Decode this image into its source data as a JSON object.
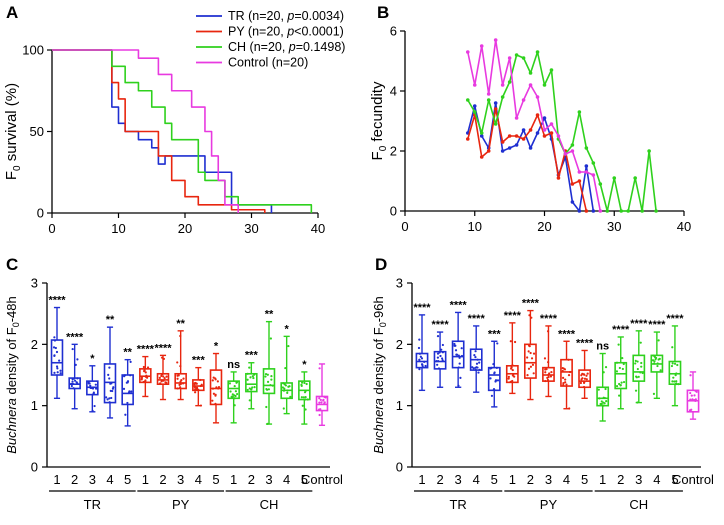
{
  "colors": {
    "TR": "#1f2fd1",
    "PY": "#e8260f",
    "CH": "#2fd11d",
    "Control": "#e83ae0",
    "axis": "#000000"
  },
  "chart_data": [
    {
      "panel": "A",
      "type": "line",
      "ylabel": "F0 survival (%)",
      "ylabel_parts": {
        "pre": "F",
        "sub": "0",
        "post": " survival (%)"
      },
      "xlabel": "",
      "xlim": [
        0,
        40
      ],
      "ylim": [
        0,
        100
      ],
      "x_ticks": [
        0,
        10,
        20,
        30,
        40
      ],
      "y_ticks": [
        0,
        50,
        100
      ],
      "legend_position": "top-right",
      "legend": [
        {
          "key": "TR",
          "pre": "TR (n=20, ",
          "p": "p",
          "post": "=0.0034)"
        },
        {
          "key": "PY",
          "pre": "PY (n=20, ",
          "p": "p",
          "post": "<0.0001)"
        },
        {
          "key": "CH",
          "pre": "CH (n=20, ",
          "p": "p",
          "post": "=0.1498)"
        },
        {
          "key": "Control",
          "pre": "Control (n=20)",
          "p": "",
          "post": ""
        }
      ],
      "series": [
        {
          "name": "TR",
          "x": [
            0,
            9,
            9,
            10,
            10,
            11,
            11,
            13,
            13,
            15,
            15,
            16,
            16,
            17,
            17,
            23,
            23,
            27,
            27,
            33,
            33
          ],
          "y": [
            100,
            100,
            65,
            65,
            55,
            55,
            50,
            50,
            45,
            45,
            40,
            40,
            30,
            30,
            35,
            35,
            25,
            25,
            5,
            5,
            0
          ]
        },
        {
          "name": "PY",
          "x": [
            0,
            9,
            9,
            10,
            10,
            11,
            11,
            16,
            16,
            18,
            18,
            20,
            20,
            22,
            22,
            27,
            27,
            32,
            32
          ],
          "y": [
            100,
            100,
            80,
            80,
            70,
            70,
            50,
            50,
            35,
            35,
            20,
            20,
            10,
            10,
            5,
            5,
            2,
            2,
            0
          ]
        },
        {
          "name": "CH",
          "x": [
            0,
            9,
            9,
            11,
            11,
            13,
            13,
            15,
            15,
            17,
            17,
            18,
            18,
            22,
            22,
            23,
            23,
            26,
            26,
            28,
            28,
            39,
            39
          ],
          "y": [
            100,
            100,
            90,
            90,
            80,
            80,
            75,
            75,
            65,
            65,
            55,
            55,
            45,
            45,
            25,
            25,
            20,
            20,
            10,
            10,
            5,
            5,
            0
          ]
        },
        {
          "name": "Control",
          "x": [
            0,
            13,
            13,
            16,
            16,
            18,
            18,
            21,
            21,
            23,
            23,
            24,
            24,
            25,
            25,
            26,
            26,
            28,
            28
          ],
          "y": [
            100,
            100,
            95,
            95,
            85,
            85,
            75,
            75,
            65,
            65,
            50,
            50,
            35,
            35,
            20,
            20,
            5,
            5,
            0
          ]
        }
      ]
    },
    {
      "panel": "B",
      "type": "line",
      "ylabel": "F0 fecundity",
      "ylabel_parts": {
        "pre": "F",
        "sub": "0",
        "post": " fecundity"
      },
      "xlabel": "",
      "xlim": [
        0,
        40
      ],
      "ylim": [
        0,
        6
      ],
      "x_ticks": [
        0,
        10,
        20,
        30,
        40
      ],
      "y_ticks": [
        0,
        2,
        4,
        6
      ],
      "series": [
        {
          "name": "TR",
          "x": [
            9,
            10,
            11,
            12,
            13,
            14,
            15,
            16,
            17,
            18,
            19,
            20,
            21,
            22,
            23,
            24,
            25,
            26,
            27
          ],
          "y": [
            2.6,
            3.5,
            2.5,
            2.1,
            3.6,
            2.0,
            2.1,
            2.2,
            2.7,
            2.1,
            2.6,
            3.1,
            2.4,
            1.2,
            1.8,
            0.3,
            0.0,
            1.5,
            0.0
          ]
        },
        {
          "name": "PY",
          "x": [
            9,
            10,
            11,
            12,
            13,
            14,
            15,
            16,
            17,
            18,
            19,
            20,
            21,
            22,
            23,
            24,
            25,
            26
          ],
          "y": [
            2.4,
            3.2,
            1.8,
            2.0,
            3.4,
            2.3,
            2.5,
            2.5,
            2.4,
            2.7,
            3.2,
            2.5,
            2.6,
            1.1,
            2.0,
            0.9,
            1.0,
            0.0
          ]
        },
        {
          "name": "CH",
          "x": [
            9,
            10,
            11,
            12,
            13,
            14,
            15,
            16,
            17,
            18,
            19,
            20,
            21,
            22,
            23,
            24,
            25,
            26,
            27,
            28,
            29,
            30,
            31,
            32,
            33,
            34,
            35,
            36
          ],
          "y": [
            3.7,
            3.3,
            2.6,
            3.7,
            2.9,
            3.8,
            4.3,
            5.2,
            5.1,
            4.6,
            5.3,
            4.2,
            4.7,
            2.4,
            1.9,
            2.2,
            3.3,
            2.1,
            1.6,
            0.9,
            0.0,
            1.1,
            0.0,
            0.0,
            1.1,
            0.0,
            2.0,
            0.0
          ]
        },
        {
          "name": "Control",
          "x": [
            9,
            10,
            11,
            12,
            13,
            14,
            15,
            16,
            17,
            18,
            19,
            20,
            21,
            22,
            23,
            24,
            25,
            26,
            27,
            28
          ],
          "y": [
            5.3,
            4.2,
            5.5,
            3.9,
            5.7,
            4.2,
            5.1,
            3.1,
            3.7,
            4.2,
            3.8,
            2.7,
            2.9,
            2.5,
            1.9,
            2.0,
            1.3,
            1.3,
            1.2,
            0.0
          ]
        }
      ]
    },
    {
      "panel": "C",
      "type": "box",
      "ylabel_parts": {
        "italic": "Buchnera",
        "mid": " density of F",
        "sub": "0",
        "post": "-48h"
      },
      "ylim": [
        0,
        3
      ],
      "y_ticks": [
        0,
        1,
        2,
        3
      ],
      "categories": [
        "1",
        "2",
        "3",
        "4",
        "5",
        "1",
        "2",
        "3",
        "4",
        "5",
        "1",
        "2",
        "3",
        "4",
        "5",
        "Control"
      ],
      "category_series": [
        "TR",
        "TR",
        "TR",
        "TR",
        "TR",
        "PY",
        "PY",
        "PY",
        "PY",
        "PY",
        "CH",
        "CH",
        "CH",
        "CH",
        "CH",
        "Control"
      ],
      "groups": [
        "TR",
        "PY",
        "CH"
      ],
      "boxes": [
        {
          "min": 1.12,
          "q1": 1.5,
          "median": 1.7,
          "q3": 2.07,
          "max": 2.6,
          "sig": "****"
        },
        {
          "min": 0.95,
          "q1": 1.28,
          "median": 1.35,
          "q3": 1.45,
          "max": 2.0,
          "sig": "****"
        },
        {
          "min": 0.9,
          "q1": 1.18,
          "median": 1.3,
          "q3": 1.4,
          "max": 1.65,
          "sig": "*"
        },
        {
          "min": 0.8,
          "q1": 1.05,
          "median": 1.38,
          "q3": 1.68,
          "max": 2.28,
          "sig": "**"
        },
        {
          "min": 0.67,
          "q1": 1.02,
          "median": 1.2,
          "q3": 1.5,
          "max": 1.75,
          "sig": "**"
        },
        {
          "min": 1.15,
          "q1": 1.38,
          "median": 1.48,
          "q3": 1.6,
          "max": 1.8,
          "sig": "****"
        },
        {
          "min": 1.1,
          "q1": 1.35,
          "median": 1.42,
          "q3": 1.52,
          "max": 1.82,
          "sig": "****"
        },
        {
          "min": 1.1,
          "q1": 1.28,
          "median": 1.37,
          "q3": 1.52,
          "max": 2.22,
          "sig": "**"
        },
        {
          "min": 1.0,
          "q1": 1.25,
          "median": 1.32,
          "q3": 1.42,
          "max": 1.62,
          "sig": "***"
        },
        {
          "min": 0.72,
          "q1": 1.02,
          "median": 1.28,
          "q3": 1.58,
          "max": 1.85,
          "sig": "*"
        },
        {
          "min": 0.72,
          "q1": 1.12,
          "median": 1.28,
          "q3": 1.4,
          "max": 1.55,
          "sig": "ns"
        },
        {
          "min": 0.95,
          "q1": 1.23,
          "median": 1.35,
          "q3": 1.52,
          "max": 1.7,
          "sig": "***"
        },
        {
          "min": 0.7,
          "q1": 1.2,
          "median": 1.33,
          "q3": 1.6,
          "max": 2.37,
          "sig": "**"
        },
        {
          "min": 0.87,
          "q1": 1.12,
          "median": 1.25,
          "q3": 1.37,
          "max": 2.13,
          "sig": "*"
        },
        {
          "min": 0.7,
          "q1": 1.1,
          "median": 1.25,
          "q3": 1.4,
          "max": 1.55,
          "sig": "*"
        },
        {
          "min": 0.68,
          "q1": 0.92,
          "median": 1.02,
          "q3": 1.15,
          "max": 1.68,
          "sig": ""
        }
      ]
    },
    {
      "panel": "D",
      "type": "box",
      "ylabel_parts": {
        "italic": "Buchnera",
        "mid": " density of F",
        "sub": "0",
        "post": "-96h"
      },
      "ylim": [
        0,
        3
      ],
      "y_ticks": [
        0,
        1,
        2,
        3
      ],
      "categories": [
        "1",
        "2",
        "3",
        "4",
        "5",
        "1",
        "2",
        "3",
        "4",
        "5",
        "1",
        "2",
        "3",
        "4",
        "5",
        "Control"
      ],
      "category_series": [
        "TR",
        "TR",
        "TR",
        "TR",
        "TR",
        "PY",
        "PY",
        "PY",
        "PY",
        "PY",
        "CH",
        "CH",
        "CH",
        "CH",
        "CH",
        "Control"
      ],
      "groups": [
        "TR",
        "PY",
        "CH"
      ],
      "boxes": [
        {
          "min": 1.25,
          "q1": 1.62,
          "median": 1.72,
          "q3": 1.85,
          "max": 2.48,
          "sig": "****"
        },
        {
          "min": 1.3,
          "q1": 1.6,
          "median": 1.72,
          "q3": 1.88,
          "max": 2.2,
          "sig": "****"
        },
        {
          "min": 1.3,
          "q1": 1.62,
          "median": 1.8,
          "q3": 2.05,
          "max": 2.52,
          "sig": "****"
        },
        {
          "min": 1.22,
          "q1": 1.58,
          "median": 1.75,
          "q3": 1.92,
          "max": 2.3,
          "sig": "****"
        },
        {
          "min": 0.98,
          "q1": 1.25,
          "median": 1.5,
          "q3": 1.62,
          "max": 2.05,
          "sig": "***"
        },
        {
          "min": 1.2,
          "q1": 1.38,
          "median": 1.52,
          "q3": 1.65,
          "max": 2.35,
          "sig": "****"
        },
        {
          "min": 1.1,
          "q1": 1.45,
          "median": 1.7,
          "q3": 2.0,
          "max": 2.55,
          "sig": "****"
        },
        {
          "min": 1.15,
          "q1": 1.4,
          "median": 1.5,
          "q3": 1.62,
          "max": 2.3,
          "sig": "****"
        },
        {
          "min": 0.95,
          "q1": 1.32,
          "median": 1.55,
          "q3": 1.75,
          "max": 2.05,
          "sig": "****"
        },
        {
          "min": 1.12,
          "q1": 1.3,
          "median": 1.4,
          "q3": 1.58,
          "max": 1.9,
          "sig": "****"
        },
        {
          "min": 0.75,
          "q1": 1.0,
          "median": 1.12,
          "q3": 1.3,
          "max": 1.85,
          "sig": "ns"
        },
        {
          "min": 0.95,
          "q1": 1.28,
          "median": 1.52,
          "q3": 1.7,
          "max": 2.12,
          "sig": "****"
        },
        {
          "min": 1.05,
          "q1": 1.4,
          "median": 1.55,
          "q3": 1.82,
          "max": 2.22,
          "sig": "****"
        },
        {
          "min": 1.12,
          "q1": 1.55,
          "median": 1.68,
          "q3": 1.82,
          "max": 2.2,
          "sig": "****"
        },
        {
          "min": 1.0,
          "q1": 1.35,
          "median": 1.52,
          "q3": 1.72,
          "max": 2.3,
          "sig": "****"
        },
        {
          "min": 0.78,
          "q1": 0.9,
          "median": 1.08,
          "q3": 1.25,
          "max": 1.55,
          "sig": ""
        }
      ]
    }
  ]
}
